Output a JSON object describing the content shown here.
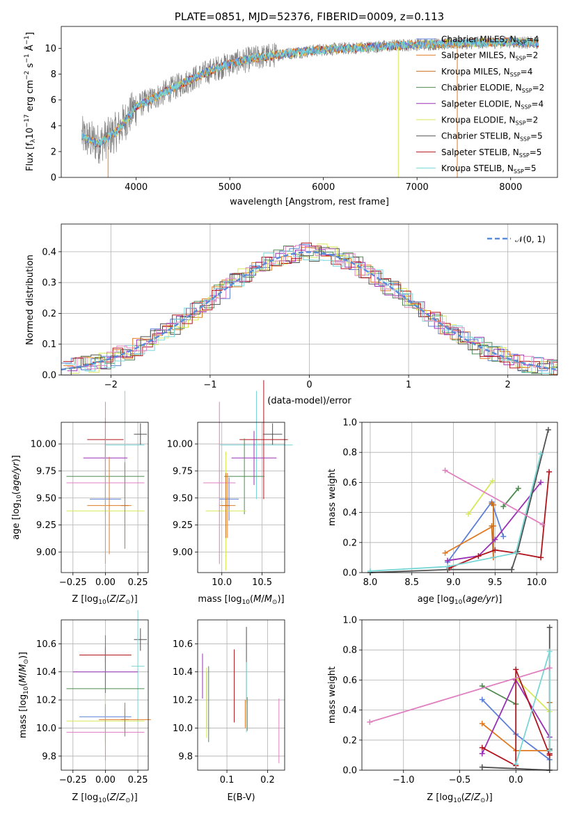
{
  "colors": {
    "Chabrier MILES": "#5b7fd8",
    "Salpeter MILES": "#e07a22",
    "Kroupa MILES": "#c96f1f",
    "Chabrier ELODIE": "#4f8a50",
    "Salpeter ELODIE": "#9a2fb4",
    "Kroupa ELODIE": "#d8e85a",
    "Chabrier STELIB": "#505050",
    "Salpeter STELIB": "#b0141c",
    "Kroupa STELIB": "#78d6d6",
    "pink": "#e07fbf",
    "gauss": "#5b8cd8",
    "data": "#808080"
  },
  "chart_data": [
    {
      "id": "spectrum",
      "type": "line",
      "title": "PLATE=0851, MJD=52376, FIBERID=0009, z=0.113",
      "xlabel": "wavelength [Angstrom, rest frame]",
      "ylabel": "Flux [f_λ 10⁻¹⁷ erg cm⁻² s⁻¹ Å⁻¹]",
      "xlim": [
        3200,
        8500
      ],
      "ylim": [
        0,
        11.7
      ],
      "xticks": [
        4000,
        5000,
        6000,
        7000,
        8000
      ],
      "yticks": [
        0,
        2,
        4,
        6,
        8,
        10
      ],
      "grid": false,
      "legend_position": "upper right",
      "legend": [
        {
          "name": "Chabrier MILES, N_SSP=4",
          "base": "Chabrier MILES",
          "sub": "SSP",
          "suf": "=4"
        },
        {
          "name": "Salpeter MILES, N_SSP=2",
          "base": "Salpeter MILES",
          "sub": "SSP",
          "suf": "=2"
        },
        {
          "name": "Kroupa MILES, N_SSP=4",
          "base": "Kroupa MILES",
          "sub": "SSP",
          "suf": "=4"
        },
        {
          "name": "Chabrier ELODIE, N_SSP=2",
          "base": "Chabrier ELODIE",
          "sub": "SSP",
          "suf": "=2"
        },
        {
          "name": "Salpeter ELODIE, N_SSP=4",
          "base": "Salpeter ELODIE",
          "sub": "SSP",
          "suf": "=4"
        },
        {
          "name": "Kroupa ELODIE, N_SSP=2",
          "base": "Kroupa ELODIE",
          "sub": "SSP",
          "suf": "=2"
        },
        {
          "name": "Chabrier STELIB, N_SSP=5",
          "base": "Chabrier STELIB",
          "sub": "SSP",
          "suf": "=5"
        },
        {
          "name": "Salpeter STELIB, N_SSP=5",
          "base": "Salpeter STELIB",
          "sub": "SSP",
          "suf": "=5"
        },
        {
          "name": "Kroupa STELIB, N_SSP=5",
          "base": "Kroupa STELIB",
          "sub": "SSP",
          "suf": "=5"
        }
      ],
      "continuum": {
        "x": [
          3420,
          3600,
          3800,
          4000,
          4200,
          4500,
          4800,
          5000,
          5300,
          5600,
          6000,
          6500,
          7000,
          7500,
          8000,
          8300
        ],
        "y": [
          3.2,
          2.6,
          3.6,
          5.5,
          6.2,
          7.3,
          8.3,
          8.8,
          9.3,
          9.6,
          9.9,
          10.1,
          10.3,
          10.4,
          10.5,
          10.4
        ]
      }
    },
    {
      "id": "residuals",
      "type": "histogram",
      "xlabel": "(data-model)/error",
      "ylabel": "Normed distribution",
      "xlim": [
        -2.5,
        2.5
      ],
      "ylim": [
        0,
        0.49
      ],
      "xticks": [
        -2,
        -1,
        0,
        1,
        2
      ],
      "yticks": [
        0.0,
        0.1,
        0.2,
        0.3,
        0.4
      ],
      "grid": true,
      "legend_position": "upper right",
      "legend": [
        {
          "name": "𝒩(0, 1)",
          "style": "dashed"
        }
      ]
    },
    {
      "id": "age_vs_Z",
      "type": "errorbar",
      "xlabel": "Z [log10(Z/Z⊙)]",
      "ylabel": "age [log10(age/yr)]",
      "xlim": [
        -0.34,
        0.33
      ],
      "ylim": [
        8.81,
        10.2
      ],
      "xticks": [
        -0.25,
        0.0,
        0.25
      ],
      "yticks": [
        9.0,
        9.25,
        9.5,
        9.75,
        10.0
      ],
      "grid": true
    },
    {
      "id": "age_vs_mass",
      "type": "errorbar",
      "xlabel": "mass [log10(M/M⊙)]",
      "ylabel": "",
      "xlim": [
        9.7,
        10.78
      ],
      "ylim": [
        8.81,
        10.2
      ],
      "xticks": [
        10.0,
        10.5
      ],
      "yticks": [
        9.0,
        9.25,
        9.5,
        9.75,
        10.0
      ],
      "grid": true
    },
    {
      "id": "weight_vs_age",
      "type": "line",
      "xlabel": "age [log10(age/yr)]",
      "ylabel": "mass weight",
      "xlim": [
        7.9,
        10.25
      ],
      "ylim": [
        0.0,
        1.0
      ],
      "xticks": [
        8.0,
        8.5,
        9.0,
        9.5,
        10.0
      ],
      "yticks": [
        0.0,
        0.2,
        0.4,
        0.6,
        0.8,
        1.0
      ],
      "grid": true,
      "series": [
        {
          "color": "Chabrier MILES",
          "x": [
            8.93,
            9.46,
            9.6
          ],
          "y": [
            0.07,
            0.47,
            0.24
          ]
        },
        {
          "color": "Salpeter MILES",
          "x": [
            8.9,
            9.48
          ],
          "y": [
            0.13,
            0.31
          ]
        },
        {
          "color": "Kroupa MILES",
          "x": [
            9.46,
            9.48,
            9.48,
            9.46
          ],
          "y": [
            0.46,
            0.45,
            0.1,
            0.31
          ]
        },
        {
          "color": "Chabrier ELODIE",
          "x": [
            9.6,
            9.78
          ],
          "y": [
            0.44,
            0.56
          ]
        },
        {
          "color": "Salpeter ELODIE",
          "x": [
            8.93,
            9.3,
            9.5,
            10.05
          ],
          "y": [
            0.08,
            0.11,
            0.22,
            0.6
          ]
        },
        {
          "color": "Kroupa ELODIE",
          "x": [
            9.18,
            9.47
          ],
          "y": [
            0.39,
            0.61
          ]
        },
        {
          "color": "Chabrier STELIB",
          "x": [
            8.0,
            8.93,
            9.7,
            9.77,
            10.14
          ],
          "y": [
            0.0,
            0.02,
            0.02,
            0.14,
            0.95
          ]
        },
        {
          "color": "Salpeter STELIB",
          "x": [
            8.95,
            9.3,
            9.5,
            9.75,
            10.05,
            10.15
          ],
          "y": [
            0.03,
            0.11,
            0.15,
            0.13,
            0.1,
            0.67
          ]
        },
        {
          "color": "Kroupa STELIB",
          "x": [
            8.0,
            8.93,
            9.75,
            10.05
          ],
          "y": [
            0.01,
            0.04,
            0.13,
            0.79
          ]
        },
        {
          "color": "pink",
          "x": [
            8.9,
            10.07
          ],
          "y": [
            0.68,
            0.32
          ]
        }
      ]
    },
    {
      "id": "mass_vs_Z",
      "type": "errorbar",
      "xlabel": "Z [log10(Z/Z⊙)]",
      "ylabel": "mass [log10(M/M⊙)]",
      "xlim": [
        -0.34,
        0.33
      ],
      "ylim": [
        9.7,
        10.77
      ],
      "xticks": [
        -0.25,
        0.0,
        0.25
      ],
      "yticks": [
        9.8,
        10.0,
        10.2,
        10.4,
        10.6
      ],
      "grid": true
    },
    {
      "id": "mass_vs_ebv",
      "type": "errorbar",
      "xlabel": "E(B-V)",
      "ylabel": "",
      "xlim": [
        0.028,
        0.242
      ],
      "ylim": [
        9.7,
        10.77
      ],
      "xticks": [
        0.1,
        0.2
      ],
      "yticks": [
        9.8,
        10.0,
        10.2,
        10.4,
        10.6
      ],
      "grid": true
    },
    {
      "id": "weight_vs_Z",
      "type": "line",
      "xlabel": "Z [log10(Z/Z⊙)]",
      "ylabel": "mass weight",
      "xlim": [
        -1.37,
        0.37
      ],
      "ylim": [
        0.0,
        1.0
      ],
      "xticks": [
        -1.0,
        -0.5,
        0.0
      ],
      "yticks": [
        0.0,
        0.2,
        0.4,
        0.6,
        0.8,
        1.0
      ],
      "grid": true,
      "series": [
        {
          "color": "Chabrier MILES",
          "x": [
            -0.3,
            0.0,
            0.3
          ],
          "y": [
            0.47,
            0.24,
            0.07
          ]
        },
        {
          "color": "Salpeter MILES",
          "x": [
            -0.3,
            0.0,
            0.3
          ],
          "y": [
            0.31,
            0.13,
            0.13
          ]
        },
        {
          "color": "Kroupa MILES",
          "x": [
            0.3,
            0.3,
            0.3
          ],
          "y": [
            0.45,
            0.1,
            0.13
          ]
        },
        {
          "color": "Chabrier ELODIE",
          "x": [
            -0.3,
            0.0
          ],
          "y": [
            0.56,
            0.44
          ]
        },
        {
          "color": "Salpeter ELODIE",
          "x": [
            -0.3,
            0.0,
            0.3
          ],
          "y": [
            0.11,
            0.6,
            0.22
          ]
        },
        {
          "color": "Kroupa ELODIE",
          "x": [
            0.0,
            0.3
          ],
          "y": [
            0.61,
            0.39
          ]
        },
        {
          "color": "Chabrier STELIB",
          "x": [
            -0.3,
            0.3,
            0.3,
            0.3
          ],
          "y": [
            0.02,
            0.0,
            0.95,
            0.14
          ]
        },
        {
          "color": "Salpeter STELIB",
          "x": [
            -0.3,
            0.0,
            0.0,
            0.3,
            0.3
          ],
          "y": [
            0.15,
            0.03,
            0.67,
            0.1,
            0.11
          ]
        },
        {
          "color": "Kroupa STELIB",
          "x": [
            0.0,
            0.3,
            0.3
          ],
          "y": [
            0.04,
            0.79,
            0.13
          ]
        },
        {
          "color": "pink",
          "x": [
            -1.3,
            0.3
          ],
          "y": [
            0.32,
            0.68
          ]
        }
      ]
    }
  ]
}
